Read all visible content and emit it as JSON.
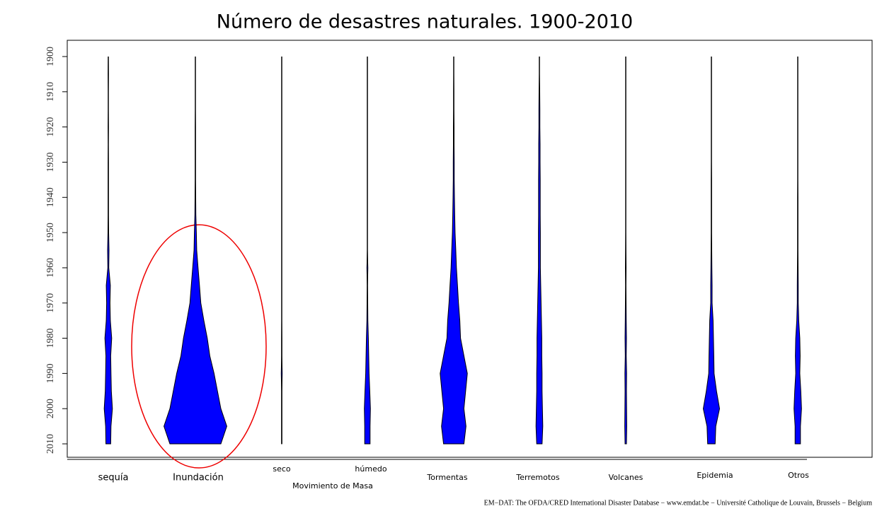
{
  "chart_data": {
    "type": "violin",
    "title": "Número de desastres naturales. 1900-2010",
    "group_label": "Movimiento de Masa",
    "source": "EM−DAT: The OFDA/CRED International Disaster Database − www.emdat.be − Université Catholique de Louvain, Brussels − Belgium",
    "x": [
      1900,
      1905,
      1910,
      1915,
      1920,
      1925,
      1930,
      1935,
      1940,
      1945,
      1950,
      1955,
      1960,
      1965,
      1970,
      1975,
      1980,
      1985,
      1990,
      1995,
      2000,
      2005,
      2010
    ],
    "color": "#0000ff",
    "series": [
      {
        "name": "sequía",
        "values": [
          0,
          1,
          0,
          0,
          1,
          0,
          1,
          1,
          1,
          1,
          2,
          4,
          3,
          12,
          10,
          12,
          20,
          14,
          16,
          18,
          24,
          16,
          14
        ]
      },
      {
        "name": "Inundación",
        "values": [
          0,
          0,
          0,
          0,
          1,
          1,
          1,
          1,
          2,
          3,
          6,
          8,
          16,
          24,
          32,
          50,
          70,
          85,
          110,
          130,
          150,
          185,
          150
        ]
      },
      {
        "name": "seco",
        "values": [
          0,
          0,
          0,
          0,
          0,
          0,
          0,
          0,
          0,
          0,
          0,
          0,
          0,
          0,
          0,
          0,
          1,
          1,
          3,
          1,
          1,
          1,
          1
        ]
      },
      {
        "name": "húmedo",
        "values": [
          0,
          0,
          0,
          0,
          0,
          0,
          0,
          0,
          0,
          0,
          0,
          0,
          3,
          1,
          2,
          3,
          6,
          8,
          10,
          14,
          18,
          16,
          16
        ]
      },
      {
        "name": "Tormentas",
        "values": [
          0,
          0,
          1,
          1,
          2,
          2,
          3,
          3,
          4,
          6,
          8,
          12,
          16,
          22,
          28,
          36,
          40,
          60,
          80,
          70,
          60,
          72,
          60
        ]
      },
      {
        "name": "Terremotos",
        "values": [
          0,
          0,
          2,
          3,
          3,
          4,
          4,
          5,
          5,
          5,
          6,
          6,
          6,
          8,
          10,
          12,
          14,
          14,
          16,
          16,
          18,
          20,
          16
        ]
      },
      {
        "name": "Volcanes",
        "values": [
          0,
          0,
          0,
          0,
          0,
          0,
          0,
          0,
          0,
          0,
          0,
          1,
          2,
          1,
          2,
          3,
          4,
          3,
          5,
          4,
          5,
          6,
          4
        ]
      },
      {
        "name": "Epidemia",
        "values": [
          0,
          0,
          0,
          0,
          0,
          0,
          0,
          1,
          1,
          1,
          1,
          2,
          3,
          4,
          4,
          10,
          12,
          14,
          16,
          30,
          48,
          26,
          22
        ]
      },
      {
        "name": "Otros",
        "values": [
          0,
          0,
          0,
          0,
          0,
          0,
          0,
          0,
          1,
          1,
          1,
          1,
          2,
          3,
          3,
          6,
          12,
          14,
          12,
          18,
          22,
          16,
          16
        ]
      }
    ],
    "ylim": [
      1900,
      2010
    ],
    "yticks": [
      1900,
      1910,
      1920,
      1930,
      1940,
      1950,
      1960,
      1970,
      1980,
      1990,
      2000,
      2010
    ]
  }
}
